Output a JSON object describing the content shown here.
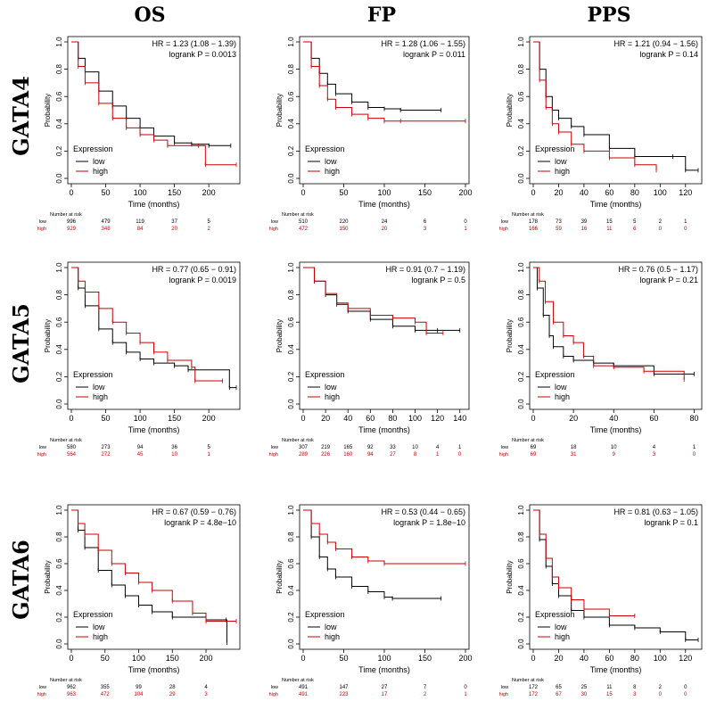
{
  "columns": [
    "OS",
    "FP",
    "PPS"
  ],
  "rows": [
    "GATA4",
    "GATA5",
    "GATA6"
  ],
  "common": {
    "xlabel": "Time (months)",
    "ylabel": "Probability",
    "legend_title": "Expression",
    "legend_low": "low",
    "legend_high": "high",
    "risk_title": "Number at risk",
    "risk_low_label": "low",
    "risk_high_label": "high",
    "low_color": "#000000",
    "high_color": "#cc0000"
  },
  "chart_data": [
    {
      "id": "gata4-os",
      "row": "GATA4",
      "col": "OS",
      "type": "line",
      "hr": "HR = 1.23 (1.08 − 1.39)",
      "p": "logrank P = 0.0013",
      "xlim": [
        0,
        240
      ],
      "xticks": [
        "0",
        "50",
        "100",
        "150",
        "200"
      ],
      "xtick_vals": [
        0,
        50,
        100,
        150,
        200
      ],
      "ylim": [
        0,
        1
      ],
      "yticks": [
        "0.0",
        "0.2",
        "0.4",
        "0.6",
        "0.8",
        "1.0"
      ],
      "series": [
        {
          "name": "low",
          "x": [
            0,
            10,
            20,
            40,
            60,
            80,
            100,
            120,
            150,
            175,
            200,
            232
          ],
          "y": [
            1,
            0.88,
            0.78,
            0.64,
            0.53,
            0.44,
            0.37,
            0.31,
            0.26,
            0.25,
            0.24,
            0.24
          ]
        },
        {
          "name": "high",
          "x": [
            0,
            10,
            20,
            40,
            60,
            80,
            100,
            120,
            140,
            185,
            195,
            240
          ],
          "y": [
            1,
            0.82,
            0.7,
            0.55,
            0.44,
            0.37,
            0.32,
            0.28,
            0.24,
            0.24,
            0.1,
            0.1
          ]
        }
      ],
      "risk_low": [
        "996",
        "479",
        "119",
        "37",
        "5"
      ],
      "risk_high": [
        "929",
        "348",
        "84",
        "20",
        "2"
      ]
    },
    {
      "id": "gata4-fp",
      "row": "GATA4",
      "col": "FP",
      "type": "line",
      "hr": "HR = 1.28 (1.06 − 1.55)",
      "p": "logrank P = 0.011",
      "xlim": [
        0,
        200
      ],
      "xticks": [
        "0",
        "50",
        "100",
        "150",
        "200"
      ],
      "xtick_vals": [
        0,
        50,
        100,
        150,
        200
      ],
      "ylim": [
        0,
        1
      ],
      "yticks": [
        "0.0",
        "0.2",
        "0.4",
        "0.6",
        "0.8",
        "1.0"
      ],
      "series": [
        {
          "name": "low",
          "x": [
            0,
            10,
            20,
            30,
            40,
            60,
            80,
            100,
            120,
            170
          ],
          "y": [
            1,
            0.88,
            0.77,
            0.69,
            0.62,
            0.56,
            0.52,
            0.51,
            0.5,
            0.5
          ]
        },
        {
          "name": "high",
          "x": [
            0,
            10,
            20,
            30,
            40,
            60,
            80,
            100,
            120,
            200
          ],
          "y": [
            1,
            0.82,
            0.68,
            0.58,
            0.52,
            0.47,
            0.44,
            0.42,
            0.42,
            0.42
          ]
        }
      ],
      "risk_low": [
        "510",
        "220",
        "24",
        "6",
        "0"
      ],
      "risk_high": [
        "472",
        "150",
        "20",
        "3",
        "1"
      ]
    },
    {
      "id": "gata4-pps",
      "row": "GATA4",
      "col": "PPS",
      "type": "line",
      "hr": "HR = 1.21 (0.94 − 1.56)",
      "p": "logrank P = 0.14",
      "xlim": [
        0,
        130
      ],
      "xticks": [
        "0",
        "20",
        "40",
        "60",
        "80",
        "100",
        "120"
      ],
      "xtick_vals": [
        0,
        20,
        40,
        60,
        80,
        100,
        120
      ],
      "ylim": [
        0,
        1
      ],
      "yticks": [
        "0.0",
        "0.2",
        "0.4",
        "0.6",
        "0.8",
        "1.0"
      ],
      "series": [
        {
          "name": "low",
          "x": [
            0,
            5,
            10,
            15,
            20,
            30,
            40,
            60,
            80,
            110,
            120,
            130
          ],
          "y": [
            1,
            0.8,
            0.6,
            0.5,
            0.44,
            0.38,
            0.32,
            0.22,
            0.16,
            0.16,
            0.06,
            0.06
          ]
        },
        {
          "name": "high",
          "x": [
            0,
            5,
            10,
            15,
            20,
            30,
            40,
            60,
            80,
            97
          ],
          "y": [
            1,
            0.72,
            0.52,
            0.4,
            0.34,
            0.25,
            0.2,
            0.15,
            0.1,
            0.06
          ]
        }
      ],
      "risk_low": [
        "178",
        "73",
        "39",
        "15",
        "5",
        "2",
        "1"
      ],
      "risk_high": [
        "166",
        "59",
        "16",
        "11",
        "6",
        "0",
        "0"
      ]
    },
    {
      "id": "gata5-os",
      "row": "GATA5",
      "col": "OS",
      "type": "line",
      "hr": "HR = 0.77 (0.65 − 0.91)",
      "p": "logrank P = 0.0019",
      "xlim": [
        0,
        240
      ],
      "xticks": [
        "0",
        "50",
        "100",
        "150",
        "200"
      ],
      "xtick_vals": [
        0,
        50,
        100,
        150,
        200
      ],
      "ylim": [
        0,
        1
      ],
      "yticks": [
        "0.0",
        "0.2",
        "0.4",
        "0.6",
        "0.8",
        "1.0"
      ],
      "series": [
        {
          "name": "low",
          "x": [
            0,
            10,
            20,
            40,
            60,
            80,
            100,
            120,
            150,
            170,
            230,
            240
          ],
          "y": [
            1,
            0.85,
            0.72,
            0.55,
            0.45,
            0.38,
            0.33,
            0.3,
            0.28,
            0.25,
            0.12,
            0.12
          ]
        },
        {
          "name": "high",
          "x": [
            0,
            10,
            20,
            40,
            60,
            80,
            100,
            120,
            140,
            175,
            180,
            220
          ],
          "y": [
            1,
            0.9,
            0.82,
            0.7,
            0.6,
            0.52,
            0.45,
            0.38,
            0.32,
            0.27,
            0.17,
            0.17
          ]
        }
      ],
      "risk_low": [
        "580",
        "273",
        "94",
        "36",
        "5"
      ],
      "risk_high": [
        "564",
        "272",
        "45",
        "10",
        "1"
      ]
    },
    {
      "id": "gata5-fp",
      "row": "GATA5",
      "col": "FP",
      "type": "line",
      "hr": "HR = 0.91 (0.7 − 1.19)",
      "p": "logrank P = 0.5",
      "xlim": [
        0,
        145
      ],
      "xticks": [
        "0",
        "20",
        "40",
        "60",
        "80",
        "100",
        "120",
        "140"
      ],
      "xtick_vals": [
        0,
        20,
        40,
        60,
        80,
        100,
        120,
        140
      ],
      "ylim": [
        0,
        1
      ],
      "yticks": [
        "0.0",
        "0.2",
        "0.4",
        "0.6",
        "0.8",
        "1.0"
      ],
      "series": [
        {
          "name": "low",
          "x": [
            0,
            10,
            20,
            30,
            40,
            60,
            80,
            100,
            120,
            140
          ],
          "y": [
            1,
            0.9,
            0.8,
            0.73,
            0.68,
            0.62,
            0.57,
            0.54,
            0.54,
            0.54
          ]
        },
        {
          "name": "high",
          "x": [
            0,
            10,
            20,
            30,
            40,
            60,
            80,
            100,
            110,
            125
          ],
          "y": [
            1,
            0.9,
            0.81,
            0.74,
            0.7,
            0.65,
            0.63,
            0.6,
            0.52,
            0.52
          ]
        }
      ],
      "risk_low": [
        "307",
        "219",
        "165",
        "92",
        "33",
        "10",
        "4",
        "1"
      ],
      "risk_high": [
        "289",
        "226",
        "160",
        "94",
        "27",
        "8",
        "1",
        "0"
      ]
    },
    {
      "id": "gata5-pps",
      "row": "GATA5",
      "col": "PPS",
      "type": "line",
      "hr": "HR = 0.76 (0.5 − 1.17)",
      "p": "logrank P = 0.21",
      "xlim": [
        0,
        82
      ],
      "xticks": [
        "0",
        "20",
        "40",
        "60",
        "80"
      ],
      "xtick_vals": [
        0,
        20,
        40,
        60,
        80
      ],
      "ylim": [
        0,
        1
      ],
      "yticks": [
        "0.0",
        "0.2",
        "0.4",
        "0.6",
        "0.8",
        "1.0"
      ],
      "series": [
        {
          "name": "low",
          "x": [
            0,
            2,
            5,
            8,
            10,
            15,
            20,
            30,
            40,
            60,
            80
          ],
          "y": [
            1,
            0.85,
            0.65,
            0.5,
            0.42,
            0.35,
            0.32,
            0.3,
            0.28,
            0.22,
            0.22
          ]
        },
        {
          "name": "high",
          "x": [
            0,
            3,
            6,
            10,
            15,
            20,
            25,
            30,
            40,
            55,
            75
          ],
          "y": [
            1,
            0.9,
            0.75,
            0.6,
            0.5,
            0.45,
            0.35,
            0.28,
            0.27,
            0.24,
            0.18
          ]
        }
      ],
      "risk_low": [
        "69",
        "18",
        "10",
        "4",
        "1"
      ],
      "risk_high": [
        "69",
        "31",
        "9",
        "3",
        "0"
      ]
    },
    {
      "id": "gata6-os",
      "row": "GATA6",
      "col": "OS",
      "type": "line",
      "hr": "HR = 0.67 (0.59 − 0.76)",
      "p": "logrank P = 4.8e−10",
      "xlim": [
        0,
        245
      ],
      "xticks": [
        "0",
        "50",
        "100",
        "150",
        "200"
      ],
      "xtick_vals": [
        0,
        50,
        100,
        150,
        200
      ],
      "ylim": [
        0,
        1
      ],
      "yticks": [
        "0.0",
        "0.2",
        "0.4",
        "0.6",
        "0.8",
        "1.0"
      ],
      "series": [
        {
          "name": "low",
          "x": [
            0,
            10,
            20,
            40,
            60,
            80,
            100,
            120,
            150,
            200,
            230,
            231
          ],
          "y": [
            1,
            0.85,
            0.72,
            0.55,
            0.44,
            0.36,
            0.29,
            0.24,
            0.2,
            0.18,
            0.18,
            0.01
          ]
        },
        {
          "name": "high",
          "x": [
            0,
            10,
            20,
            40,
            60,
            80,
            100,
            120,
            150,
            180,
            200,
            245
          ],
          "y": [
            1,
            0.9,
            0.82,
            0.7,
            0.6,
            0.53,
            0.46,
            0.4,
            0.32,
            0.23,
            0.17,
            0.17
          ]
        }
      ],
      "risk_low": [
        "962",
        "355",
        "99",
        "28",
        "4"
      ],
      "risk_high": [
        "963",
        "472",
        "104",
        "29",
        "3"
      ]
    },
    {
      "id": "gata6-fp",
      "row": "GATA6",
      "col": "FP",
      "type": "line",
      "hr": "HR = 0.53 (0.44 − 0.65)",
      "p": "logrank P = 1.8e−10",
      "xlim": [
        0,
        200
      ],
      "xticks": [
        "0",
        "50",
        "100",
        "150",
        "200"
      ],
      "xtick_vals": [
        0,
        50,
        100,
        150,
        200
      ],
      "ylim": [
        0,
        1
      ],
      "yticks": [
        "0.0",
        "0.2",
        "0.4",
        "0.6",
        "0.8",
        "1.0"
      ],
      "series": [
        {
          "name": "low",
          "x": [
            0,
            10,
            20,
            30,
            40,
            60,
            80,
            100,
            110,
            170
          ],
          "y": [
            1,
            0.8,
            0.65,
            0.56,
            0.5,
            0.43,
            0.39,
            0.35,
            0.34,
            0.34
          ]
        },
        {
          "name": "high",
          "x": [
            0,
            10,
            20,
            30,
            40,
            60,
            80,
            100,
            200
          ],
          "y": [
            1,
            0.9,
            0.82,
            0.76,
            0.71,
            0.65,
            0.62,
            0.6,
            0.6
          ]
        }
      ],
      "risk_low": [
        "491",
        "147",
        "27",
        "7",
        "0"
      ],
      "risk_high": [
        "491",
        "223",
        "17",
        "2",
        "1"
      ]
    },
    {
      "id": "gata6-pps",
      "row": "GATA6",
      "col": "PPS",
      "type": "line",
      "hr": "HR = 0.81 (0.63 − 1.05)",
      "p": "logrank P = 0.1",
      "xlim": [
        0,
        130
      ],
      "xticks": [
        "0",
        "20",
        "40",
        "60",
        "80",
        "100",
        "120"
      ],
      "xtick_vals": [
        0,
        20,
        40,
        60,
        80,
        100,
        120
      ],
      "ylim": [
        0,
        1
      ],
      "yticks": [
        "0.0",
        "0.2",
        "0.4",
        "0.6",
        "0.8",
        "1.0"
      ],
      "series": [
        {
          "name": "low",
          "x": [
            0,
            5,
            10,
            15,
            20,
            30,
            40,
            60,
            80,
            100,
            120,
            130
          ],
          "y": [
            1,
            0.78,
            0.58,
            0.45,
            0.36,
            0.25,
            0.2,
            0.14,
            0.12,
            0.09,
            0.03,
            0.03
          ]
        },
        {
          "name": "high",
          "x": [
            0,
            5,
            10,
            15,
            20,
            30,
            40,
            60,
            80
          ],
          "y": [
            1,
            0.82,
            0.64,
            0.5,
            0.42,
            0.33,
            0.26,
            0.21,
            0.21
          ]
        }
      ],
      "risk_low": [
        "172",
        "65",
        "25",
        "11",
        "8",
        "2",
        "0"
      ],
      "risk_high": [
        "172",
        "67",
        "30",
        "15",
        "3",
        "0",
        "0"
      ]
    }
  ]
}
